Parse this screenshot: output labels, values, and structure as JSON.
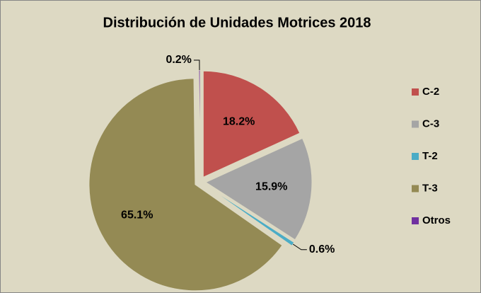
{
  "chart_data": {
    "type": "pie",
    "title": "Distribución de Unidades Motrices 2018",
    "categories": [
      "C-2",
      "C-3",
      "T-2",
      "T-3",
      "Otros"
    ],
    "values": [
      18.2,
      15.9,
      0.6,
      65.1,
      0.2
    ],
    "value_labels": [
      "18.2%",
      "15.9%",
      "0.6%",
      "65.1%",
      "0.2%"
    ],
    "colors": [
      "#c0504d",
      "#a5a5a5",
      "#4bacc6",
      "#948a54",
      "#7030a0"
    ],
    "legend": "right"
  }
}
